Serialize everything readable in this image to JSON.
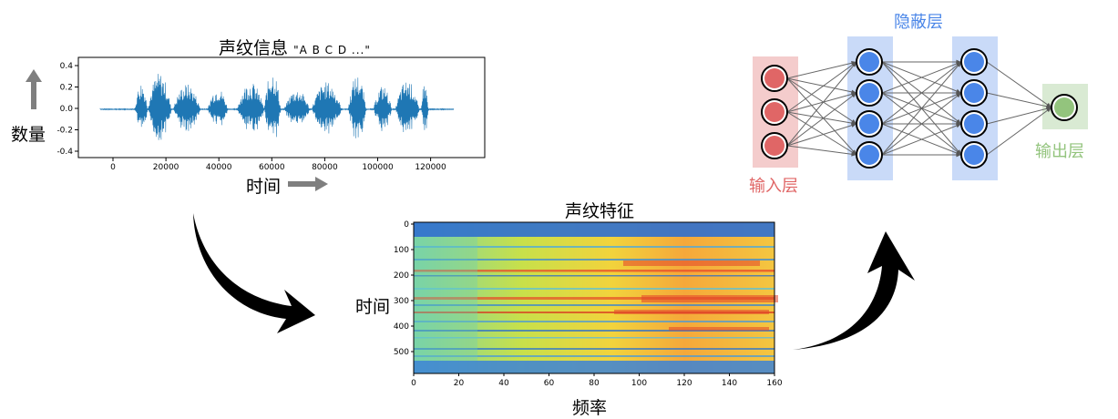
{
  "waveform": {
    "title": "声纹信息",
    "subtitle": "\"A B C D ...\"",
    "ylabel": "数量",
    "xlabel": "时间",
    "yticks": [
      "0.4",
      "0.2",
      "0.0",
      "-0.2",
      "-0.4"
    ],
    "xticks": [
      "0",
      "20000",
      "40000",
      "60000",
      "80000",
      "100000",
      "120000"
    ]
  },
  "spectrogram": {
    "title": "声纹特征",
    "ylabel": "时间",
    "xlabel": "频率",
    "yticks": [
      "0",
      "100",
      "200",
      "300",
      "400",
      "500"
    ],
    "xticks": [
      "0",
      "20",
      "40",
      "60",
      "80",
      "100",
      "120",
      "140",
      "160"
    ]
  },
  "network": {
    "hidden_label": "隐蔽层",
    "input_label": "输入层",
    "output_label": "输出层",
    "colors": {
      "input_node": "#e06666",
      "input_bg": "#f4cccc",
      "hidden_node": "#4a86e8",
      "hidden_bg": "#c9daf8",
      "output_node": "#93c47d",
      "output_bg": "#d9ead3",
      "input_text": "#e06666",
      "hidden_text": "#4a86e8",
      "output_text": "#93c47d"
    },
    "layers": {
      "input": 3,
      "hidden1": 4,
      "hidden2": 4,
      "output": 1
    }
  }
}
